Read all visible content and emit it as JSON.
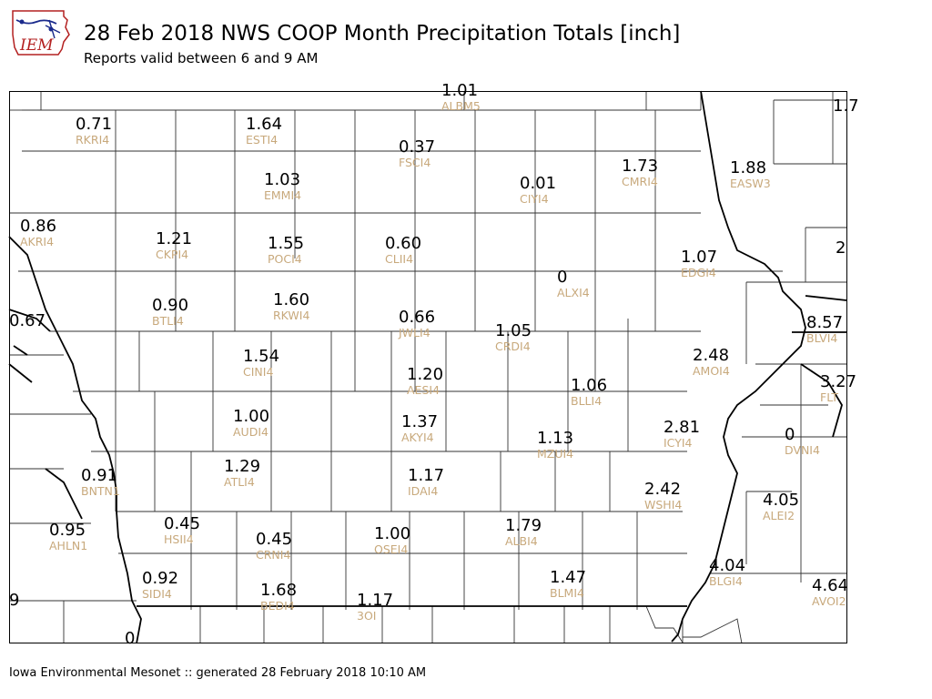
{
  "header": {
    "title": "28 Feb 2018 NWS COOP Month Precipitation Totals [inch]",
    "subtitle": "Reports valid between 6 and 9 AM",
    "logo_text": "IEM"
  },
  "footer": {
    "text": "Iowa Environmental Mesonet :: generated 28 February 2018 10:10 AM"
  },
  "colors": {
    "value": "#000000",
    "station": "#c8a97c",
    "county_line": "#333333",
    "logo_accent": "#b32020"
  },
  "stations": [
    {
      "value": "1.01",
      "id": "ALBM5"
    },
    {
      "value": "1.7",
      "id": ""
    },
    {
      "value": "0.71",
      "id": "RKRI4"
    },
    {
      "value": "1.64",
      "id": "ESTI4"
    },
    {
      "value": "0.37",
      "id": "FSCI4"
    },
    {
      "value": "1.73",
      "id": "CMRI4"
    },
    {
      "value": "1.88",
      "id": "EASW3"
    },
    {
      "value": "0.01",
      "id": "CIYI4"
    },
    {
      "value": "1.03",
      "id": "EMMI4"
    },
    {
      "value": "0.86",
      "id": "AKRI4"
    },
    {
      "value": "1.21",
      "id": "CKPI4"
    },
    {
      "value": "1.55",
      "id": "POCI4"
    },
    {
      "value": "0.60",
      "id": "CLII4"
    },
    {
      "value": "2",
      "id": ""
    },
    {
      "value": "1.07",
      "id": "EDGI4"
    },
    {
      "value": "0",
      "id": "ALXI4"
    },
    {
      "value": "0.90",
      "id": "BTLI4"
    },
    {
      "value": "1.60",
      "id": "RKWI4"
    },
    {
      "value": "0.67",
      "id": ""
    },
    {
      "value": "0.66",
      "id": "JWLI4"
    },
    {
      "value": "1.05",
      "id": "CRDI4"
    },
    {
      "value": "8.57",
      "id": "BLVI4"
    },
    {
      "value": "2.48",
      "id": "AMOI4"
    },
    {
      "value": "1.54",
      "id": "CINI4"
    },
    {
      "value": "1.20",
      "id": "AESI4"
    },
    {
      "value": "1.06",
      "id": "BLLI4"
    },
    {
      "value": "3.27",
      "id": "FLT"
    },
    {
      "value": "1.00",
      "id": "AUDI4"
    },
    {
      "value": "1.37",
      "id": "AKYI4"
    },
    {
      "value": "2.81",
      "id": "ICYI4"
    },
    {
      "value": "0",
      "id": "DVNI4"
    },
    {
      "value": "1.13",
      "id": "MZUI4"
    },
    {
      "value": "0.91",
      "id": "BNTN1"
    },
    {
      "value": "1.29",
      "id": "ATLI4"
    },
    {
      "value": "1.17",
      "id": "IDAI4"
    },
    {
      "value": "2.42",
      "id": "WSHI4"
    },
    {
      "value": "4.05",
      "id": "ALEI2"
    },
    {
      "value": "0.95",
      "id": "AHLN1"
    },
    {
      "value": "0.45",
      "id": "HSII4"
    },
    {
      "value": "0.45",
      "id": "CRNI4"
    },
    {
      "value": "1.00",
      "id": "OSEI4"
    },
    {
      "value": "1.79",
      "id": "ALBI4"
    },
    {
      "value": "4.04",
      "id": "BLGI4"
    },
    {
      "value": "0.92",
      "id": "SIDI4"
    },
    {
      "value": "1.68",
      "id": "BEDI4"
    },
    {
      "value": "1.47",
      "id": "BLMI4"
    },
    {
      "value": "4.64",
      "id": "AVOI2"
    },
    {
      "value": "1.17",
      "id": "3OI"
    },
    {
      "value": "9",
      "id": ""
    },
    {
      "value": "0",
      "id": ""
    }
  ]
}
